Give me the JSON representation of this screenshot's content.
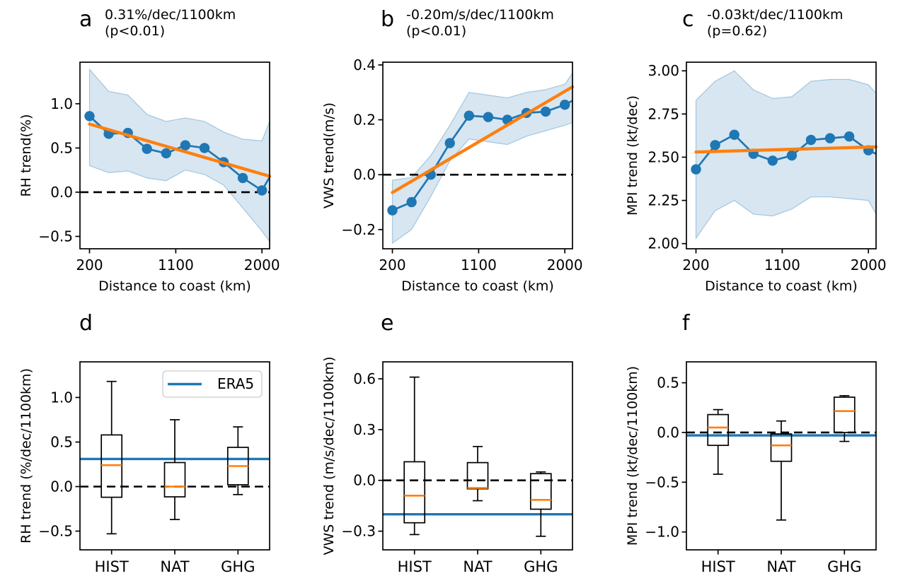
{
  "colors": {
    "series_blue": "#1f77b4",
    "trend_orange": "#ff7f0e",
    "median_orange": "#ff7f0e",
    "era5_blue": "#1f77b4",
    "band_fill": "rgba(31,119,180,0.18)",
    "band_edge": "rgba(31,119,180,0.35)",
    "dashed_black": "#000000",
    "legend_border": "#cccccc"
  },
  "chart_data": [
    {
      "id": "a",
      "panel_letter": "a",
      "type": "line",
      "annotation": {
        "line1": "0.31%/dec/1100km",
        "line2": "(p<0.01)"
      },
      "xlabel": "Distance to coast (km)",
      "ylabel": "RH trend(%)",
      "xlim": [
        100,
        2080
      ],
      "ylim": [
        -0.64,
        1.47
      ],
      "xticks": [
        {
          "v": 200,
          "label": "200"
        },
        {
          "v": 1100,
          "label": "1100"
        },
        {
          "v": 2000,
          "label": "2000"
        }
      ],
      "yticks": [
        {
          "v": 1.0,
          "label": "1.0"
        },
        {
          "v": 0.5,
          "label": "0.5"
        },
        {
          "v": 0.0,
          "label": "0.0"
        },
        {
          "v": -0.5,
          "label": "−0.5"
        }
      ],
      "x": [
        200,
        400,
        600,
        800,
        1000,
        1200,
        1400,
        1600,
        1800,
        2000
      ],
      "y": [
        0.86,
        0.66,
        0.67,
        0.49,
        0.44,
        0.53,
        0.5,
        0.34,
        0.16,
        0.02
      ],
      "band_upper": [
        1.39,
        1.14,
        1.1,
        0.88,
        0.8,
        0.84,
        0.8,
        0.68,
        0.6,
        0.58
      ],
      "band_lower": [
        0.3,
        0.22,
        0.24,
        0.16,
        0.13,
        0.25,
        0.2,
        0.08,
        -0.18,
        -0.44
      ],
      "tail": {
        "x": 2080,
        "y": 0.17,
        "upper": 0.8,
        "lower": -0.56
      },
      "trend": {
        "x1": 200,
        "y1": 0.77,
        "x2": 2080,
        "y2": 0.18
      },
      "zero_line": true
    },
    {
      "id": "b",
      "panel_letter": "b",
      "type": "line",
      "annotation": {
        "line1": "-0.20m/s/dec/1100km",
        "line2": "(p<0.01)"
      },
      "xlabel": "Distance to coast (km)",
      "ylabel": "VWS trend(m/s)",
      "xlim": [
        100,
        2080
      ],
      "ylim": [
        -0.27,
        0.41
      ],
      "xticks": [
        {
          "v": 200,
          "label": "200"
        },
        {
          "v": 1100,
          "label": "1100"
        },
        {
          "v": 2000,
          "label": "2000"
        }
      ],
      "yticks": [
        {
          "v": 0.4,
          "label": "0.4"
        },
        {
          "v": 0.2,
          "label": "0.2"
        },
        {
          "v": 0.0,
          "label": "0.0"
        },
        {
          "v": -0.2,
          "label": "−0.2"
        }
      ],
      "x": [
        200,
        400,
        600,
        800,
        1000,
        1200,
        1400,
        1600,
        1800,
        2000
      ],
      "y": [
        -0.13,
        -0.1,
        0.0,
        0.115,
        0.215,
        0.21,
        0.2,
        0.225,
        0.23,
        0.255
      ],
      "band_upper": [
        -0.02,
        -0.01,
        0.07,
        0.18,
        0.3,
        0.29,
        0.28,
        0.3,
        0.31,
        0.33
      ],
      "band_lower": [
        -0.25,
        -0.2,
        -0.08,
        0.05,
        0.13,
        0.12,
        0.11,
        0.14,
        0.16,
        0.18
      ],
      "tail": {
        "x": 2080,
        "y": 0.27,
        "upper": 0.37,
        "lower": 0.19
      },
      "trend": {
        "x1": 200,
        "y1": -0.065,
        "x2": 2080,
        "y2": 0.32
      },
      "zero_line": true
    },
    {
      "id": "c",
      "panel_letter": "c",
      "type": "line",
      "annotation": {
        "line1": "-0.03kt/dec/1100km",
        "line2": "(p=0.62)"
      },
      "xlabel": "Distance to coast (km)",
      "ylabel": "MPI trend (kt/dec)",
      "xlim": [
        100,
        2080
      ],
      "ylim": [
        1.97,
        3.05
      ],
      "xticks": [
        {
          "v": 200,
          "label": "200"
        },
        {
          "v": 1100,
          "label": "1100"
        },
        {
          "v": 2000,
          "label": "2000"
        }
      ],
      "yticks": [
        {
          "v": 3.0,
          "label": "3.00"
        },
        {
          "v": 2.75,
          "label": "2.75"
        },
        {
          "v": 2.5,
          "label": "2.50"
        },
        {
          "v": 2.25,
          "label": "2.25"
        },
        {
          "v": 2.0,
          "label": "2.00"
        }
      ],
      "x": [
        200,
        400,
        600,
        800,
        1000,
        1200,
        1400,
        1600,
        1800,
        2000
      ],
      "y": [
        2.43,
        2.57,
        2.63,
        2.52,
        2.48,
        2.51,
        2.6,
        2.61,
        2.62,
        2.54
      ],
      "band_upper": [
        2.83,
        2.94,
        3.0,
        2.89,
        2.84,
        2.85,
        2.94,
        2.95,
        2.95,
        2.92
      ],
      "band_lower": [
        2.03,
        2.19,
        2.25,
        2.17,
        2.16,
        2.2,
        2.27,
        2.27,
        2.26,
        2.25
      ],
      "tail": {
        "x": 2080,
        "y": 2.52,
        "upper": 2.87,
        "lower": 2.17
      },
      "trend": {
        "x1": 200,
        "y1": 2.53,
        "x2": 2080,
        "y2": 2.56
      },
      "zero_line": false
    },
    {
      "id": "d",
      "panel_letter": "d",
      "type": "box",
      "ylabel": "RH trend (%/dec/1100km)",
      "ylim": [
        -0.71,
        1.4
      ],
      "yticks": [
        {
          "v": 1.0,
          "label": "1.0"
        },
        {
          "v": 0.5,
          "label": "0.5"
        },
        {
          "v": 0.0,
          "label": "0.0"
        },
        {
          "v": -0.5,
          "label": "−0.5"
        }
      ],
      "categories": [
        "HIST",
        "NAT",
        "GHG"
      ],
      "boxes": [
        {
          "lo": -0.53,
          "q1": -0.12,
          "med": 0.24,
          "q3": 0.58,
          "hi": 1.18
        },
        {
          "lo": -0.37,
          "q1": -0.115,
          "med": 0.0,
          "q3": 0.27,
          "hi": 0.75
        },
        {
          "lo": -0.09,
          "q1": 0.02,
          "med": 0.23,
          "q3": 0.44,
          "hi": 0.67
        }
      ],
      "era5": 0.31,
      "legend": {
        "label": "ERA5"
      },
      "zero_line": true
    },
    {
      "id": "e",
      "panel_letter": "e",
      "type": "box",
      "ylabel": "VWS trend (m/s/dec/1100km)",
      "ylim": [
        -0.41,
        0.7
      ],
      "yticks": [
        {
          "v": 0.6,
          "label": "0.6"
        },
        {
          "v": 0.3,
          "label": "0.3"
        },
        {
          "v": 0.0,
          "label": "0.0"
        },
        {
          "v": -0.3,
          "label": "−0.3"
        }
      ],
      "categories": [
        "HIST",
        "NAT",
        "GHG"
      ],
      "boxes": [
        {
          "lo": -0.32,
          "q1": -0.25,
          "med": -0.09,
          "q3": 0.11,
          "hi": 0.61
        },
        {
          "lo": -0.12,
          "q1": -0.05,
          "med": -0.045,
          "q3": 0.105,
          "hi": 0.2
        },
        {
          "lo": -0.33,
          "q1": -0.17,
          "med": -0.115,
          "q3": 0.04,
          "hi": 0.05
        }
      ],
      "era5": -0.2,
      "zero_line": true
    },
    {
      "id": "f",
      "panel_letter": "f",
      "type": "box",
      "ylabel": "MPI trend (kt/dec/1100km)",
      "ylim": [
        -1.18,
        0.71
      ],
      "yticks": [
        {
          "v": 0.5,
          "label": "0.5"
        },
        {
          "v": 0.0,
          "label": "0.0"
        },
        {
          "v": -0.5,
          "label": "−0.5"
        },
        {
          "v": -1.0,
          "label": "−1.0"
        }
      ],
      "categories": [
        "HIST",
        "NAT",
        "GHG"
      ],
      "boxes": [
        {
          "lo": -0.42,
          "q1": -0.13,
          "med": 0.05,
          "q3": 0.18,
          "hi": 0.23
        },
        {
          "lo": -0.88,
          "q1": -0.29,
          "med": -0.13,
          "q3": -0.015,
          "hi": 0.115
        },
        {
          "lo": -0.09,
          "q1": 0.0,
          "med": 0.215,
          "q3": 0.355,
          "hi": 0.37
        }
      ],
      "era5": -0.03,
      "zero_line": true
    }
  ]
}
